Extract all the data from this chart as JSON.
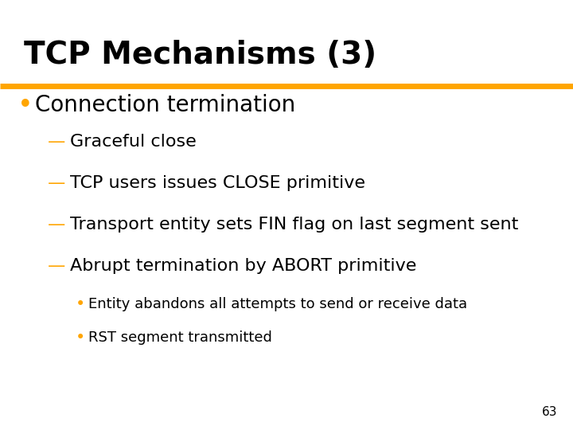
{
  "title": "TCP Mechanisms (3)",
  "title_fontsize": 28,
  "title_color": "#000000",
  "underline_color": "#FFA500",
  "background_color": "#FFFFFF",
  "bullet1_text": "Connection termination",
  "bullet1_fontsize": 20,
  "bullet1_color": "#000000",
  "bullet1_dot_color": "#FFA500",
  "dash_color": "#FFA500",
  "dash_items": [
    {
      "text": "Graceful close"
    },
    {
      "text": "TCP users issues CLOSE primitive"
    },
    {
      "text": "Transport entity sets FIN flag on last segment sent"
    },
    {
      "text": "Abrupt termination by ABORT primitive"
    }
  ],
  "dash_fontsize": 16,
  "dash_text_color": "#000000",
  "sub_bullet_items": [
    {
      "text": "Entity abandons all attempts to send or receive data"
    },
    {
      "text": "RST segment transmitted"
    }
  ],
  "sub_bullet_fontsize": 13,
  "sub_bullet_color": "#000000",
  "sub_bullet_dot_color": "#FFA500",
  "page_number": "63",
  "page_number_fontsize": 11
}
